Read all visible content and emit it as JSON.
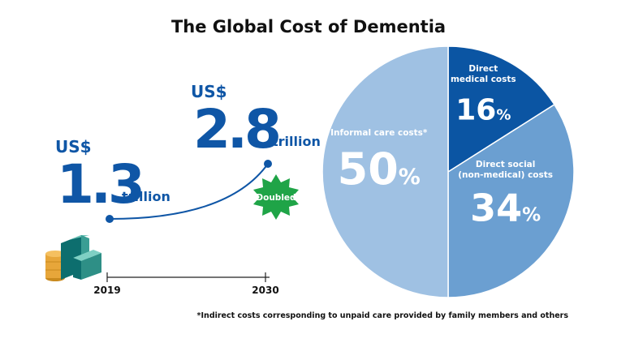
{
  "title": "The Global Cost of Dementia",
  "chart_data": [
    {
      "type": "line",
      "currency": "US$",
      "unit": "trillion",
      "badge": "Doubled",
      "categories": [
        "2019",
        "2030"
      ],
      "values": [
        1.3,
        2.8
      ],
      "color": "#0f56a6"
    },
    {
      "type": "pie",
      "categories": [
        "Direct\nmedical costs",
        "Direct social\n(non-medical) costs",
        "Informal care costs*"
      ],
      "values": [
        16,
        34,
        50
      ],
      "value_labels": [
        "16%",
        "34%",
        "50%"
      ],
      "colors": [
        "#0b55a3",
        "#6b9fd1",
        "#9fc1e3"
      ]
    }
  ],
  "footnote": "*Indirect costs corresponding to unpaid care provided by family members and others"
}
